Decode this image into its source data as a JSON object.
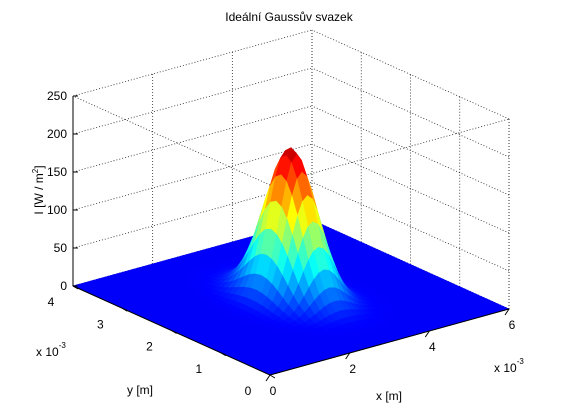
{
  "chart_data": {
    "type": "surface",
    "title": "Ideální Gaussův svazek",
    "xlabel": "x [m]",
    "ylabel": "y [m]",
    "zlabel_main": "I [W / m",
    "zlabel_sup": "2",
    "zlabel_end": "]",
    "x_multiplier": "x 10",
    "x_multiplier_exp": "-3",
    "y_multiplier": "x 10",
    "y_multiplier_exp": "-3",
    "xlim": [
      0,
      6
    ],
    "ylim": [
      0,
      4
    ],
    "zlim": [
      0,
      250
    ],
    "xticks": [
      0,
      2,
      4,
      6
    ],
    "yticks": [
      0,
      1,
      2,
      3,
      4
    ],
    "zticks": [
      0,
      50,
      100,
      150,
      200,
      250
    ],
    "x_tick_labels": [
      "0",
      "2",
      "4",
      "6"
    ],
    "y_tick_labels": [
      "0",
      "1",
      "2",
      "3",
      "4"
    ],
    "z_tick_labels": [
      "0",
      "50",
      "100",
      "150",
      "200",
      "250"
    ],
    "grid": true,
    "colormap": "jet",
    "beam": {
      "peak_intensity": 197,
      "center_x": 0.003,
      "center_y": 0.002,
      "sigma": 0.00042
    },
    "colors": {
      "axis": "#000000",
      "grid": "#262626",
      "background": "#ffffff"
    }
  }
}
